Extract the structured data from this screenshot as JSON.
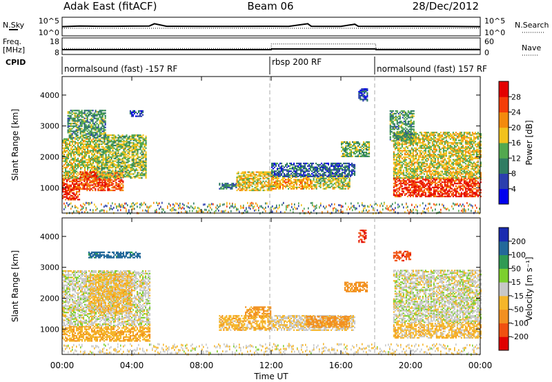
{
  "header": {
    "radar": "Adak East (fitACF)",
    "beam": "Beam 06",
    "date": "28/Dec/2012"
  },
  "top_panels": {
    "nsky_label": "N.Sky",
    "nsearch_label": "N.Search",
    "noise_ticks_left": [
      "10^5",
      "10^0"
    ],
    "noise_ticks_right": [
      "10^5",
      "10^0"
    ],
    "freq_label_line1": "Freq.",
    "freq_label_line2": "[MHz]",
    "freq_ticks": [
      "18",
      "8"
    ],
    "nave_label": "Nave",
    "nave_ticks": [
      "60",
      "0"
    ],
    "cpid_label": "CPID",
    "cpid_segments": [
      {
        "label": "normalsound (fast) -157 RF",
        "start": 0,
        "end": 12
      },
      {
        "label": "rbsp 200 RF",
        "start": 12,
        "end": 18
      },
      {
        "label": "normalsound (fast) 157 RF",
        "start": 18,
        "end": 24
      }
    ]
  },
  "axes": {
    "ylabel": "Slant Range [km]",
    "xlabel": "Time UT",
    "y_ticks": [
      "4000",
      "3000",
      "2000",
      "1000"
    ],
    "x_ticks": [
      "00:00",
      "04:00",
      "08:00",
      "12:00",
      "16:00",
      "20:00",
      "00:00"
    ]
  },
  "colorbars": {
    "power": {
      "label": "Power [dB]",
      "ticks": [
        "28",
        "24",
        "20",
        "16",
        "12",
        "8",
        "4"
      ],
      "colors": [
        "#0000ee",
        "#2b3fae",
        "#2f7c62",
        "#52a84f",
        "#f2c21d",
        "#f48a0c",
        "#f43d08",
        "#e30000"
      ]
    },
    "velocity": {
      "label": "Velocity [m s⁻¹]",
      "ticks": [
        "200",
        "100",
        "50",
        "15",
        "-15",
        "-50",
        "-100",
        "-200"
      ],
      "colors": [
        "#e00000",
        "#f05010",
        "#f29020",
        "#f5b62a",
        "#c8c8c8",
        "#7ccf2e",
        "#2f9a53",
        "#23689a",
        "#1a2bb0"
      ]
    }
  },
  "chart_data": [
    {
      "type": "line",
      "title": "N.Sky / N.Search",
      "x_range_hours": [
        0,
        24
      ],
      "ylim": [
        1,
        100000
      ],
      "log_y": true,
      "series": [
        {
          "name": "N.Sky",
          "x": [
            0,
            1,
            2,
            3,
            4,
            5,
            5.3,
            6,
            8,
            10,
            12,
            13,
            14.1,
            14.3,
            15,
            16,
            16.8,
            17,
            18,
            20,
            22,
            24
          ],
          "y": [
            300,
            500,
            400,
            400,
            450,
            500,
            3000,
            400,
            350,
            350,
            400,
            350,
            3000,
            400,
            350,
            350,
            2000,
            400,
            350,
            400,
            350,
            300
          ]
        },
        {
          "name": "N.Search",
          "x": [
            0,
            4,
            8,
            12,
            16,
            20,
            24
          ],
          "y": [
            80,
            80,
            80,
            80,
            80,
            80,
            80
          ]
        }
      ]
    },
    {
      "type": "line",
      "title": "Freq. / Nave",
      "x_range_hours": [
        0,
        24
      ],
      "series": [
        {
          "name": "Freq. [MHz]",
          "x": [
            0,
            12,
            12.01,
            18,
            18.01,
            24
          ],
          "y": [
            10.5,
            10.5,
            11,
            11,
            10.5,
            10.5
          ]
        },
        {
          "name": "Nave",
          "x": [
            0,
            12,
            12.01,
            18,
            18.01,
            24
          ],
          "y": [
            20,
            20,
            40,
            40,
            20,
            20
          ]
        }
      ]
    },
    {
      "type": "heatmap",
      "title": "Power [dB]",
      "x_range_hours": [
        0,
        24
      ],
      "ylim": [
        180,
        4600
      ],
      "ylabel": "Slant Range [km]",
      "regions": [
        {
          "t0": 0.0,
          "t1": 1.0,
          "r0": 600,
          "r1": 1300,
          "mean": 27
        },
        {
          "t0": 0.0,
          "t1": 2.0,
          "r0": 1300,
          "r1": 2600,
          "mean": 17
        },
        {
          "t0": 1.0,
          "t1": 3.5,
          "r0": 900,
          "r1": 1500,
          "mean": 26
        },
        {
          "t0": 2.0,
          "t1": 4.8,
          "r0": 1300,
          "r1": 2700,
          "mean": 15
        },
        {
          "t0": 0.3,
          "t1": 2.5,
          "r0": 2600,
          "r1": 3500,
          "mean": 12
        },
        {
          "t0": 3.8,
          "t1": 4.6,
          "r0": 3300,
          "r1": 3500,
          "mean": 6
        },
        {
          "t0": 9.0,
          "t1": 10.0,
          "r0": 950,
          "r1": 1150,
          "mean": 9
        },
        {
          "t0": 10.0,
          "t1": 12.0,
          "r0": 900,
          "r1": 1500,
          "mean": 18
        },
        {
          "t0": 12.0,
          "t1": 14.3,
          "r0": 950,
          "r1": 1400,
          "mean": 20
        },
        {
          "t0": 14.4,
          "t1": 16.5,
          "r0": 950,
          "r1": 1400,
          "mean": 16
        },
        {
          "t0": 12.0,
          "t1": 16.8,
          "r0": 1350,
          "r1": 1800,
          "mean": 8
        },
        {
          "t0": 16.0,
          "t1": 17.6,
          "r0": 2000,
          "r1": 2500,
          "mean": 14
        },
        {
          "t0": 17.0,
          "t1": 17.5,
          "r0": 3800,
          "r1": 4200,
          "mean": 6
        },
        {
          "t0": 19.0,
          "t1": 24.0,
          "r0": 700,
          "r1": 1300,
          "mean": 27
        },
        {
          "t0": 19.0,
          "t1": 24.0,
          "r0": 1300,
          "r1": 2800,
          "mean": 17
        },
        {
          "t0": 18.8,
          "t1": 20.2,
          "r0": 2500,
          "r1": 3500,
          "mean": 12
        }
      ]
    },
    {
      "type": "heatmap",
      "title": "Velocity [m s-1]",
      "x_range_hours": [
        0,
        24
      ],
      "ylim": [
        180,
        4600
      ],
      "ylabel": "Slant Range [km]",
      "regions": [
        {
          "t0": 0.0,
          "t1": 5.0,
          "r0": 600,
          "r1": 1100,
          "mean": -40
        },
        {
          "t0": 0.0,
          "t1": 5.0,
          "r0": 1100,
          "r1": 2900,
          "mean": 0
        },
        {
          "t0": 1.5,
          "t1": 4.0,
          "r0": 1500,
          "r1": 2800,
          "mean": -30
        },
        {
          "t0": 1.5,
          "t1": 4.5,
          "r0": 3300,
          "r1": 3500,
          "mean": 120
        },
        {
          "t0": 9.0,
          "t1": 12.0,
          "r0": 950,
          "r1": 1450,
          "mean": -35
        },
        {
          "t0": 10.5,
          "t1": 12.0,
          "r0": 1400,
          "r1": 1700,
          "mean": -60
        },
        {
          "t0": 12.0,
          "t1": 16.8,
          "r0": 950,
          "r1": 1450,
          "mean": -10
        },
        {
          "t0": 14.0,
          "t1": 16.5,
          "r0": 1050,
          "r1": 1400,
          "mean": -70
        },
        {
          "t0": 16.2,
          "t1": 17.5,
          "r0": 2200,
          "r1": 2500,
          "mean": -70
        },
        {
          "t0": 17.0,
          "t1": 17.4,
          "r0": 3800,
          "r1": 4200,
          "mean": -200
        },
        {
          "t0": 19.0,
          "t1": 24.0,
          "r0": 700,
          "r1": 1200,
          "mean": -30
        },
        {
          "t0": 19.0,
          "t1": 24.0,
          "r0": 1200,
          "r1": 2900,
          "mean": 0
        },
        {
          "t0": 19.0,
          "t1": 20.0,
          "r0": 3200,
          "r1": 3500,
          "mean": -180
        }
      ]
    }
  ]
}
